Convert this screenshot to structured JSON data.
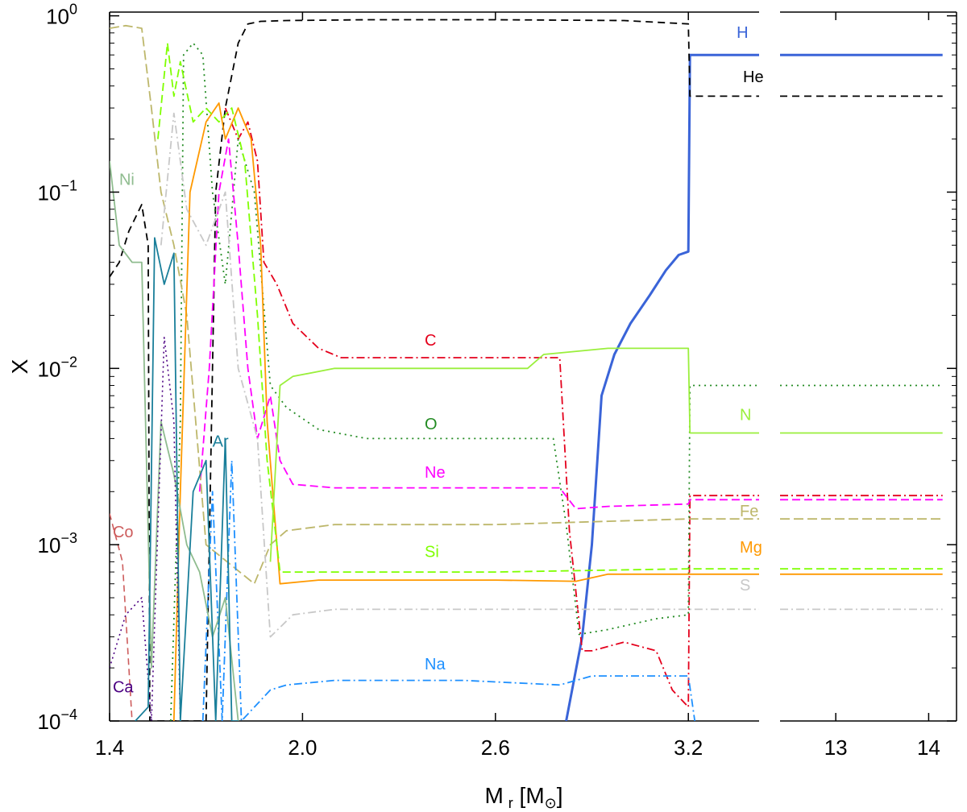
{
  "chart_data": {
    "type": "line",
    "title": "",
    "xlabel": {
      "main": "M",
      "sub": "r",
      "unit_open": " [M",
      "sun_symbol": "⊙",
      "unit_close": "]"
    },
    "ylabel": "X",
    "yscale": "log",
    "ylim": [
      0.0001,
      1.05
    ],
    "yticks": [
      {
        "base": "10",
        "exp": "0",
        "value": 1
      },
      {
        "base": "10",
        "exp": "−1",
        "value": 0.1
      },
      {
        "base": "10",
        "exp": "−2",
        "value": 0.01
      },
      {
        "base": "10",
        "exp": "−3",
        "value": 0.001
      },
      {
        "base": "10",
        "exp": "−4",
        "value": 0.0001
      }
    ],
    "panels": [
      {
        "xlim": [
          1.4,
          3.42
        ],
        "xticks": [
          {
            "label": "1.4",
            "value": 1.4
          },
          {
            "label": "2.0",
            "value": 2.0
          },
          {
            "label": "2.6",
            "value": 2.6
          },
          {
            "label": "3.2",
            "value": 3.2
          }
        ]
      },
      {
        "xlim": [
          12.4,
          14.3
        ],
        "xticks": [
          {
            "label": "13",
            "value": 13
          },
          {
            "label": "14",
            "value": 14
          }
        ]
      }
    ],
    "series": [
      {
        "name": "H",
        "color": "#3a64d8",
        "dash": "",
        "width": 3,
        "points": [
          [
            2.82,
            0.0001
          ],
          [
            2.87,
            0.0003
          ],
          [
            2.9,
            0.001
          ],
          [
            2.93,
            0.007
          ],
          [
            2.97,
            0.012
          ],
          [
            3.02,
            0.018
          ],
          [
            3.08,
            0.026
          ],
          [
            3.13,
            0.036
          ],
          [
            3.17,
            0.044
          ],
          [
            3.2,
            0.046
          ],
          [
            3.205,
            0.6
          ],
          [
            3.42,
            0.6
          ],
          [
            12.4,
            0.6
          ],
          [
            14.15,
            0.6
          ]
        ],
        "label": {
          "text": "H",
          "x": 3.35,
          "y": 0.75
        }
      },
      {
        "name": "He",
        "color": "#000000",
        "dash": "9,6",
        "width": 1.8,
        "points": [
          [
            1.4,
            0.033
          ],
          [
            1.43,
            0.04
          ],
          [
            1.46,
            0.06
          ],
          [
            1.5,
            0.085
          ],
          [
            1.52,
            0.05
          ],
          [
            1.525,
            0.0001
          ],
          [
            1.7,
            0.0001
          ],
          [
            1.73,
            0.1
          ],
          [
            1.76,
            0.3
          ],
          [
            1.8,
            0.7
          ],
          [
            1.83,
            0.9
          ],
          [
            1.87,
            0.93
          ],
          [
            1.95,
            0.94
          ],
          [
            2.2,
            0.95
          ],
          [
            2.6,
            0.95
          ],
          [
            3.0,
            0.94
          ],
          [
            3.2,
            0.9
          ],
          [
            3.205,
            0.35
          ],
          [
            3.42,
            0.35
          ],
          [
            12.4,
            0.35
          ],
          [
            14.15,
            0.35
          ]
        ],
        "label": {
          "text": "He",
          "x": 3.37,
          "y": 0.42
        }
      },
      {
        "name": "C",
        "color": "#e4001c",
        "dash": "10,4,2,4",
        "width": 1.8,
        "points": [
          [
            1.76,
            0.3
          ],
          [
            1.8,
            0.2
          ],
          [
            1.83,
            0.25
          ],
          [
            1.86,
            0.15
          ],
          [
            1.88,
            0.04
          ],
          [
            1.92,
            0.03
          ],
          [
            1.97,
            0.018
          ],
          [
            2.05,
            0.013
          ],
          [
            2.12,
            0.0115
          ],
          [
            2.5,
            0.0115
          ],
          [
            2.8,
            0.0115
          ],
          [
            2.83,
            0.0012
          ],
          [
            2.87,
            0.00025
          ],
          [
            2.9,
            0.00025
          ],
          [
            3.0,
            0.00028
          ],
          [
            3.1,
            0.00025
          ],
          [
            3.15,
            0.00015
          ],
          [
            3.2,
            0.00012
          ],
          [
            3.205,
            0.0019
          ],
          [
            3.42,
            0.0019
          ],
          [
            12.4,
            0.0019
          ],
          [
            14.15,
            0.0019
          ]
        ],
        "label": {
          "text": "C",
          "x": 2.38,
          "y": 0.0135
        }
      },
      {
        "name": "O",
        "color": "#228b22",
        "dash": "2,5",
        "width": 1.8,
        "points": [
          [
            1.59,
            0.0001
          ],
          [
            1.62,
            0.005
          ],
          [
            1.63,
            0.6
          ],
          [
            1.66,
            0.7
          ],
          [
            1.69,
            0.6
          ],
          [
            1.72,
            0.1
          ],
          [
            1.76,
            0.03
          ],
          [
            1.8,
            0.2
          ],
          [
            1.85,
            0.1
          ],
          [
            1.9,
            0.008
          ],
          [
            1.95,
            0.006
          ],
          [
            2.05,
            0.0045
          ],
          [
            2.2,
            0.004
          ],
          [
            2.5,
            0.004
          ],
          [
            2.78,
            0.004
          ],
          [
            2.82,
            0.0013
          ],
          [
            2.86,
            0.00031
          ],
          [
            2.95,
            0.00033
          ],
          [
            3.1,
            0.00038
          ],
          [
            3.2,
            0.0004
          ],
          [
            3.205,
            0.008
          ],
          [
            3.42,
            0.008
          ],
          [
            12.4,
            0.008
          ],
          [
            14.15,
            0.008
          ]
        ],
        "label": {
          "text": "O",
          "x": 2.38,
          "y": 0.0045
        }
      },
      {
        "name": "Ne",
        "color": "#ff00ff",
        "dash": "10,5",
        "width": 1.8,
        "points": [
          [
            1.68,
            0.002
          ],
          [
            1.71,
            0.01
          ],
          [
            1.74,
            0.1
          ],
          [
            1.77,
            0.2
          ],
          [
            1.8,
            0.05
          ],
          [
            1.83,
            0.01
          ],
          [
            1.86,
            0.004
          ],
          [
            1.9,
            0.007
          ],
          [
            1.93,
            0.003
          ],
          [
            1.97,
            0.0022
          ],
          [
            2.1,
            0.0021
          ],
          [
            2.5,
            0.0021
          ],
          [
            2.8,
            0.0021
          ],
          [
            2.85,
            0.0016
          ],
          [
            2.95,
            0.00165
          ],
          [
            3.2,
            0.0017
          ],
          [
            3.205,
            0.0018
          ],
          [
            3.42,
            0.0018
          ],
          [
            12.4,
            0.0018
          ],
          [
            14.15,
            0.0018
          ]
        ],
        "label": {
          "text": "Ne",
          "x": 2.38,
          "y": 0.0024
        }
      },
      {
        "name": "Fe",
        "color": "#bdb76b",
        "dash": "12,5",
        "width": 1.8,
        "points": [
          [
            1.4,
            0.85
          ],
          [
            1.45,
            0.88
          ],
          [
            1.5,
            0.85
          ],
          [
            1.53,
            0.3
          ],
          [
            1.56,
            0.1
          ],
          [
            1.6,
            0.05
          ],
          [
            1.64,
            0.02
          ],
          [
            1.7,
            0.001
          ],
          [
            1.85,
            0.0006
          ],
          [
            1.9,
            0.001
          ],
          [
            1.95,
            0.0012
          ],
          [
            2.1,
            0.0013
          ],
          [
            2.6,
            0.0013
          ],
          [
            3.2,
            0.0014
          ],
          [
            3.42,
            0.0014
          ],
          [
            12.4,
            0.0014
          ],
          [
            14.15,
            0.0014
          ]
        ],
        "label": {
          "text": "Fe",
          "x": 3.36,
          "y": 0.00145
        }
      },
      {
        "name": "Mg",
        "color": "#ff9900",
        "dash": "",
        "width": 1.8,
        "points": [
          [
            1.6,
            0.0001
          ],
          [
            1.62,
            0.002
          ],
          [
            1.65,
            0.1
          ],
          [
            1.7,
            0.25
          ],
          [
            1.74,
            0.32
          ],
          [
            1.76,
            0.2
          ],
          [
            1.8,
            0.3
          ],
          [
            1.84,
            0.2
          ],
          [
            1.87,
            0.05
          ],
          [
            1.89,
            0.005
          ],
          [
            1.93,
            0.0006
          ],
          [
            2.05,
            0.00063
          ],
          [
            2.6,
            0.00063
          ],
          [
            2.85,
            0.00062
          ],
          [
            2.95,
            0.00068
          ],
          [
            3.2,
            0.00068
          ],
          [
            3.42,
            0.00068
          ],
          [
            12.4,
            0.00068
          ],
          [
            14.15,
            0.00068
          ]
        ],
        "label": {
          "text": "Mg",
          "x": 3.36,
          "y": 0.0009
        }
      },
      {
        "name": "Si",
        "color": "#7fff00",
        "dash": "10,5",
        "width": 1.8,
        "points": [
          [
            1.55,
            0.2
          ],
          [
            1.58,
            0.7
          ],
          [
            1.6,
            0.35
          ],
          [
            1.62,
            0.55
          ],
          [
            1.66,
            0.25
          ],
          [
            1.7,
            0.3
          ],
          [
            1.74,
            0.25
          ],
          [
            1.78,
            0.3
          ],
          [
            1.82,
            0.15
          ],
          [
            1.86,
            0.02
          ],
          [
            1.89,
            0.003
          ],
          [
            1.93,
            0.0007
          ],
          [
            2.1,
            0.0007
          ],
          [
            2.6,
            0.0007
          ],
          [
            3.2,
            0.00073
          ],
          [
            3.42,
            0.00073
          ],
          [
            12.4,
            0.00073
          ],
          [
            14.15,
            0.00073
          ]
        ],
        "label": {
          "text": "Si",
          "x": 2.38,
          "y": 0.00085
        }
      },
      {
        "name": "S",
        "color": "#c8c8c8",
        "dash": "10,4,2,4",
        "width": 1.8,
        "points": [
          [
            1.56,
            0.05
          ],
          [
            1.6,
            0.28
          ],
          [
            1.64,
            0.08
          ],
          [
            1.7,
            0.05
          ],
          [
            1.76,
            0.1
          ],
          [
            1.8,
            0.01
          ],
          [
            1.86,
            0.004
          ],
          [
            1.9,
            0.0003
          ],
          [
            1.97,
            0.0004
          ],
          [
            2.1,
            0.00043
          ],
          [
            2.6,
            0.00043
          ],
          [
            3.2,
            0.00043
          ],
          [
            3.42,
            0.00043
          ],
          [
            12.4,
            0.00043
          ],
          [
            14.15,
            0.00043
          ]
        ],
        "label": {
          "text": "S",
          "x": 3.36,
          "y": 0.00055
        }
      },
      {
        "name": "Na",
        "color": "#1e90ff",
        "dash": "10,4,2,4",
        "width": 1.8,
        "points": [
          [
            1.69,
            0.0001
          ],
          [
            1.72,
            0.002
          ],
          [
            1.75,
            0.0001
          ],
          [
            1.78,
            0.003
          ],
          [
            1.81,
            0.0001
          ],
          [
            1.9,
            0.00015
          ],
          [
            1.95,
            0.00016
          ],
          [
            2.1,
            0.00017
          ],
          [
            2.5,
            0.00017
          ],
          [
            2.8,
            0.00016
          ],
          [
            2.9,
            0.00018
          ],
          [
            3.2,
            0.00018
          ],
          [
            3.22,
            0.0001
          ]
        ],
        "label": {
          "text": "Na",
          "x": 2.38,
          "y": 0.000196
        }
      },
      {
        "name": "N",
        "color": "#9aef3c",
        "dash": "",
        "width": 1.8,
        "points": [
          [
            1.9,
            0.0008
          ],
          [
            1.93,
            0.008
          ],
          [
            1.97,
            0.009
          ],
          [
            2.1,
            0.01
          ],
          [
            2.5,
            0.01
          ],
          [
            2.7,
            0.01
          ],
          [
            2.75,
            0.012
          ],
          [
            2.95,
            0.013
          ],
          [
            3.2,
            0.013
          ],
          [
            3.205,
            0.0043
          ],
          [
            3.42,
            0.0043
          ],
          [
            12.4,
            0.0043
          ],
          [
            14.15,
            0.0043
          ]
        ],
        "label": {
          "text": "N",
          "x": 3.36,
          "y": 0.0051
        }
      },
      {
        "name": "Ni",
        "color": "#8fbc8f",
        "dash": "",
        "width": 1.8,
        "points": [
          [
            1.4,
            0.15
          ],
          [
            1.43,
            0.05
          ],
          [
            1.47,
            0.04
          ],
          [
            1.5,
            0.04
          ],
          [
            1.53,
            0.0002
          ],
          [
            1.56,
            0.005
          ],
          [
            1.6,
            0.0025
          ],
          [
            1.64,
            0.001
          ],
          [
            1.68,
            0.0007
          ],
          [
            1.72,
            0.0003
          ],
          [
            1.76,
            0.0005
          ],
          [
            1.8,
            0.0001
          ]
        ],
        "label": {
          "text": "Ni",
          "x": 1.43,
          "y": 0.11
        }
      },
      {
        "name": "Co",
        "color": "#cd5c5c",
        "dash": "8,5",
        "width": 1.6,
        "points": [
          [
            1.4,
            0.0015
          ],
          [
            1.44,
            0.0008
          ],
          [
            1.47,
            0.0001
          ]
        ],
        "label": {
          "text": "Co",
          "x": 1.41,
          "y": 0.0011
        }
      },
      {
        "name": "Ca",
        "color": "#4b0082",
        "dash": "2,4",
        "width": 1.6,
        "points": [
          [
            1.4,
            0.0002
          ],
          [
            1.45,
            0.0004
          ],
          [
            1.5,
            0.0005
          ],
          [
            1.53,
            0.0001
          ],
          [
            1.57,
            0.015
          ],
          [
            1.6,
            0.005
          ],
          [
            1.62,
            0.0001
          ]
        ],
        "label": {
          "text": "Ca",
          "x": 1.41,
          "y": 0.000145
        }
      },
      {
        "name": "Ar",
        "color": "#1a7f9a",
        "dash": "",
        "width": 1.8,
        "points": [
          [
            1.48,
            0.0001
          ],
          [
            1.52,
            0.00012
          ],
          [
            1.54,
            0.055
          ],
          [
            1.57,
            0.03
          ],
          [
            1.6,
            0.045
          ],
          [
            1.62,
            0.0001
          ],
          [
            1.66,
            0.002
          ],
          [
            1.7,
            0.003
          ],
          [
            1.73,
            0.0001
          ],
          [
            1.76,
            0.004
          ],
          [
            1.78,
            0.0001
          ],
          [
            1.8,
            0.0001
          ]
        ],
        "label": {
          "text": "Ar",
          "x": 1.72,
          "y": 0.0036
        }
      }
    ]
  }
}
